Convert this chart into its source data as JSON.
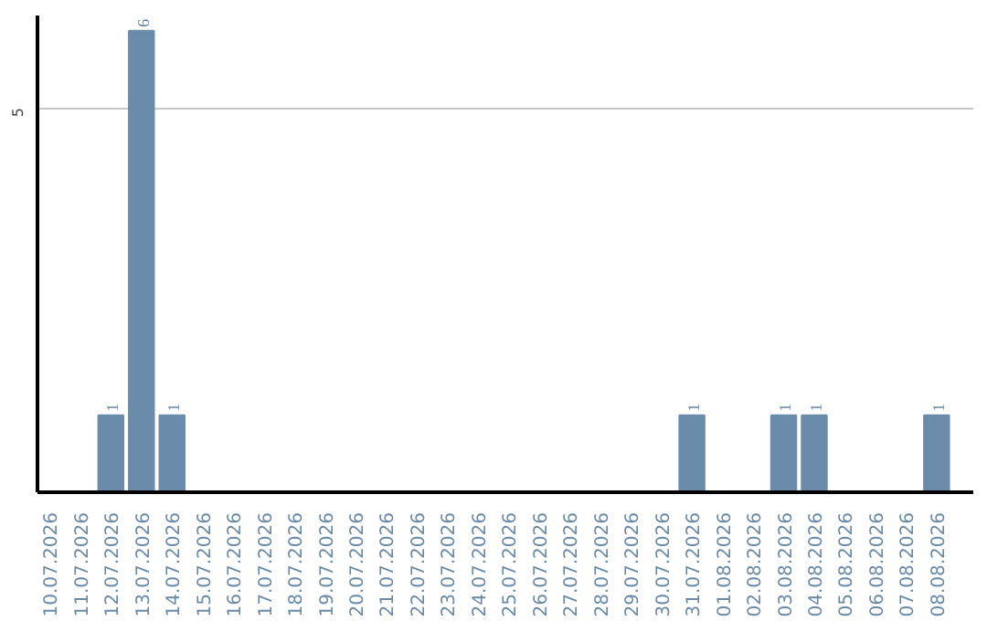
{
  "chart_data": {
    "type": "bar",
    "categories": [
      "10.07.2026",
      "11.07.2026",
      "12.07.2026",
      "13.07.2026",
      "14.07.2026",
      "15.07.2026",
      "16.07.2026",
      "17.07.2026",
      "18.07.2026",
      "19.07.2026",
      "20.07.2026",
      "21.07.2026",
      "22.07.2026",
      "23.07.2026",
      "24.07.2026",
      "25.07.2026",
      "26.07.2026",
      "27.07.2026",
      "28.07.2026",
      "29.07.2026",
      "30.07.2026",
      "31.07.2026",
      "01.08.2026",
      "02.08.2026",
      "03.08.2026",
      "04.08.2026",
      "05.08.2026",
      "06.08.2026",
      "07.08.2026",
      "08.08.2026"
    ],
    "values": [
      0,
      0,
      1,
      6,
      1,
      0,
      0,
      0,
      0,
      0,
      0,
      0,
      0,
      0,
      0,
      0,
      0,
      0,
      0,
      0,
      0,
      1,
      0,
      0,
      1,
      1,
      0,
      0,
      0,
      1
    ],
    "value_labels": [
      null,
      null,
      "1",
      "6",
      "1",
      null,
      null,
      null,
      null,
      null,
      null,
      null,
      null,
      null,
      null,
      null,
      null,
      null,
      null,
      null,
      null,
      "1",
      null,
      null,
      "1",
      "1",
      null,
      null,
      null,
      "1"
    ],
    "color": "#6a8caa",
    "ylim": [
      0,
      6.2
    ],
    "yticks": [
      5
    ],
    "grid": "y"
  }
}
